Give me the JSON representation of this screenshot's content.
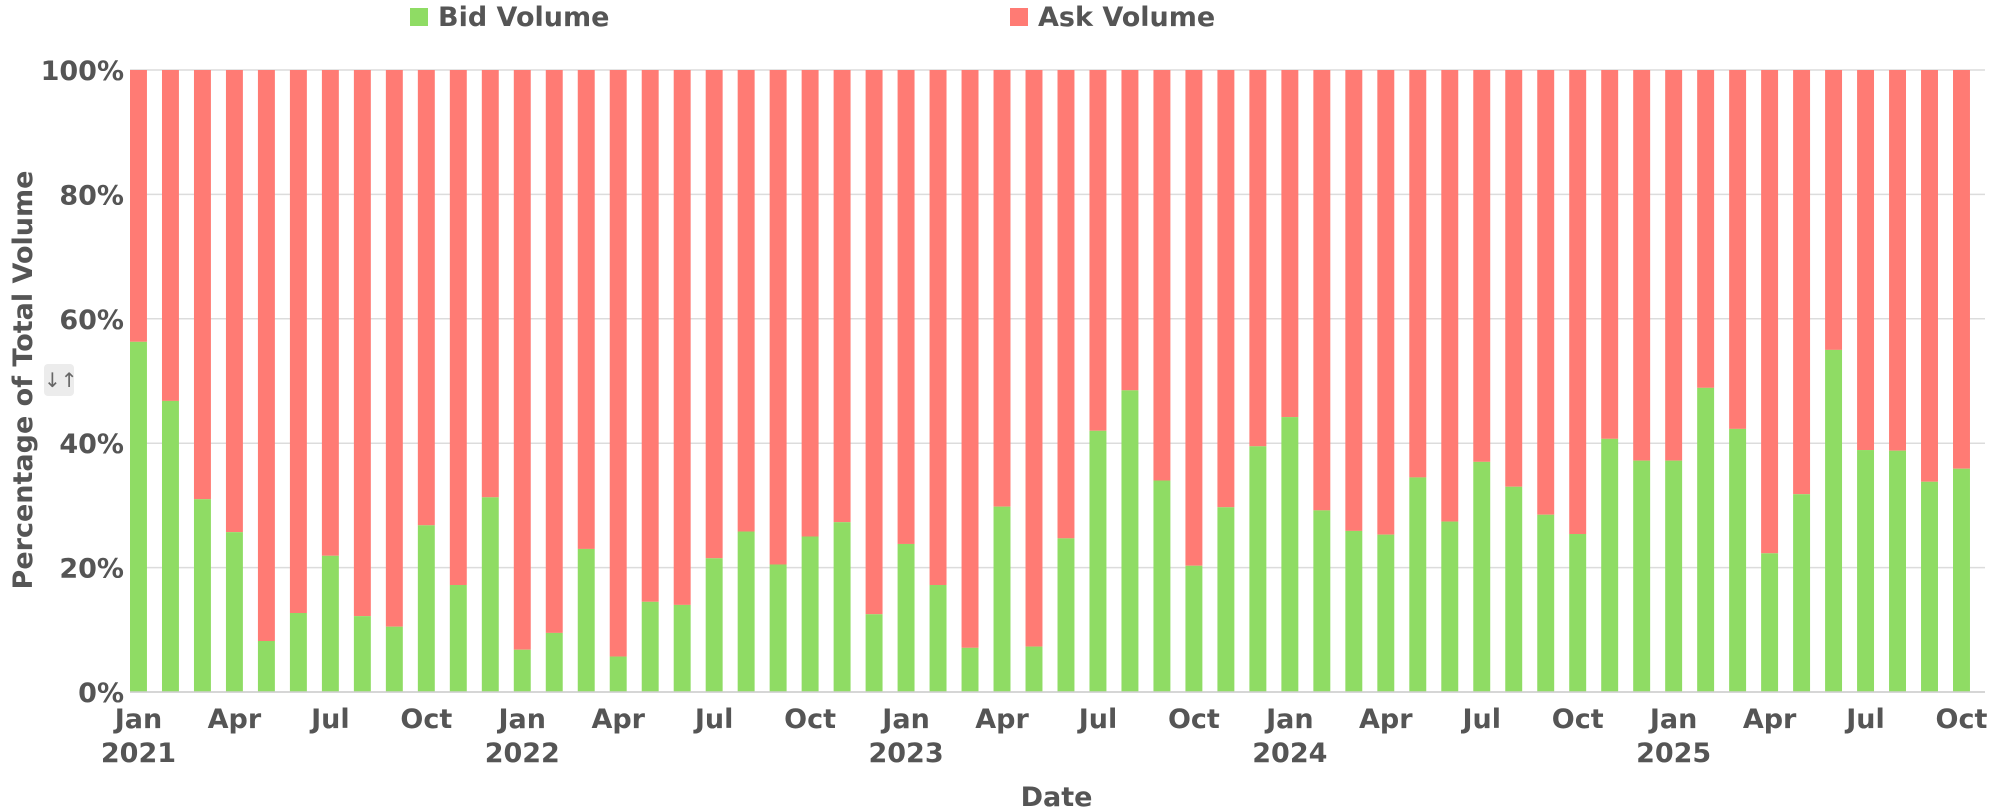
{
  "legend": {
    "bid_label": "Bid Volume",
    "ask_label": "Ask Volume",
    "bid_color": "#8fdc64",
    "ask_color": "#ff7b74"
  },
  "y_toggle_icon": "↓↑",
  "chart_data": {
    "type": "bar",
    "stacked": "percent",
    "title": "",
    "xlabel": "Date",
    "ylabel": "Percentage of Total Volume",
    "ylim": [
      0,
      100
    ],
    "y_ticks": [
      "0%",
      "20%",
      "40%",
      "60%",
      "80%",
      "100%"
    ],
    "x_ticks": [
      {
        "index": 0,
        "month": "Jan",
        "year": "2021"
      },
      {
        "index": 3,
        "month": "Apr"
      },
      {
        "index": 6,
        "month": "Jul"
      },
      {
        "index": 9,
        "month": "Oct"
      },
      {
        "index": 12,
        "month": "Jan",
        "year": "2022"
      },
      {
        "index": 15,
        "month": "Apr"
      },
      {
        "index": 18,
        "month": "Jul"
      },
      {
        "index": 21,
        "month": "Oct"
      },
      {
        "index": 24,
        "month": "Jan",
        "year": "2023"
      },
      {
        "index": 27,
        "month": "Apr"
      },
      {
        "index": 30,
        "month": "Jul"
      },
      {
        "index": 33,
        "month": "Oct"
      },
      {
        "index": 36,
        "month": "Jan",
        "year": "2024"
      },
      {
        "index": 39,
        "month": "Apr"
      },
      {
        "index": 42,
        "month": "Jul"
      },
      {
        "index": 45,
        "month": "Oct"
      },
      {
        "index": 48,
        "month": "Jan",
        "year": "2025"
      },
      {
        "index": 51,
        "month": "Apr"
      },
      {
        "index": 54,
        "month": "Jul"
      },
      {
        "index": 57,
        "month": "Oct"
      }
    ],
    "categories": [
      "2021-01",
      "2021-02",
      "2021-03",
      "2021-04",
      "2021-05",
      "2021-06",
      "2021-07",
      "2021-08",
      "2021-09",
      "2021-10",
      "2021-11",
      "2021-12",
      "2022-01",
      "2022-02",
      "2022-03",
      "2022-04",
      "2022-05",
      "2022-06",
      "2022-07",
      "2022-08",
      "2022-09",
      "2022-10",
      "2022-11",
      "2022-12",
      "2023-01",
      "2023-02",
      "2023-03",
      "2023-04",
      "2023-05",
      "2023-06",
      "2023-07",
      "2023-08",
      "2023-09",
      "2023-10",
      "2023-11",
      "2023-12",
      "2024-01",
      "2024-02",
      "2024-03",
      "2024-04",
      "2024-05",
      "2024-06",
      "2024-07",
      "2024-08",
      "2024-09",
      "2024-10",
      "2024-11",
      "2024-12",
      "2025-01",
      "2025-02",
      "2025-03",
      "2025-04",
      "2025-05",
      "2025-06",
      "2025-07",
      "2025-08",
      "2025-09",
      "2025-10"
    ],
    "series": [
      {
        "name": "Bid Volume",
        "values": [
          56.3,
          46.8,
          31.0,
          25.7,
          8.2,
          12.7,
          21.9,
          12.2,
          10.5,
          26.8,
          17.2,
          31.3,
          6.8,
          9.5,
          23.0,
          5.7,
          14.5,
          14.0,
          21.5,
          25.8,
          20.5,
          25.0,
          27.3,
          12.5,
          23.8,
          17.2,
          7.1,
          29.8,
          7.3,
          24.7,
          42.0,
          48.5,
          34.0,
          20.3,
          29.7,
          39.5,
          44.2,
          29.2,
          25.9,
          25.3,
          34.5,
          27.4,
          37.0,
          33.0,
          28.5,
          25.4,
          40.7,
          37.2,
          37.2,
          48.9,
          42.3,
          22.3,
          31.8,
          55.0,
          38.9,
          38.8,
          33.8,
          35.9
        ]
      },
      {
        "name": "Ask Volume",
        "values": [
          43.7,
          53.2,
          69.0,
          74.3,
          91.8,
          87.3,
          78.1,
          87.8,
          89.5,
          73.2,
          82.8,
          68.7,
          93.2,
          90.5,
          77.0,
          94.3,
          85.5,
          86.0,
          78.5,
          74.2,
          79.5,
          75.0,
          72.7,
          87.5,
          76.2,
          82.8,
          92.9,
          70.2,
          92.7,
          75.3,
          58.0,
          51.5,
          66.0,
          79.7,
          70.3,
          60.5,
          55.8,
          70.8,
          74.1,
          74.7,
          65.5,
          72.6,
          63.0,
          67.0,
          71.5,
          74.6,
          59.3,
          62.8,
          62.8,
          51.1,
          57.7,
          77.7,
          68.2,
          45.0,
          61.1,
          61.2,
          66.2,
          64.1
        ]
      }
    ],
    "grid": true,
    "legend_position": "top"
  }
}
